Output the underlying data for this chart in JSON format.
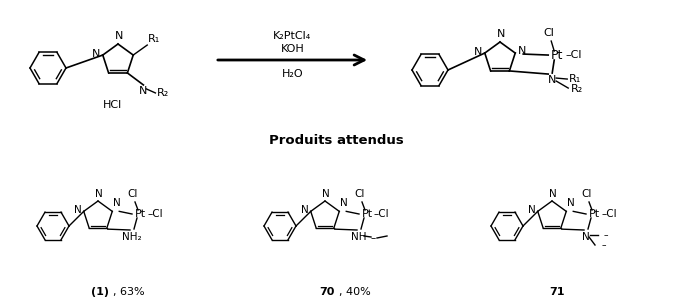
{
  "bg_color": "#ffffff",
  "reaction_conditions": [
    "K₂PtCl₄",
    "KOH",
    "H₂O"
  ],
  "section_title": "Produits attendus",
  "compound_labels": [
    "(1)",
    ", 63%",
    "70",
    ", 40%",
    "71"
  ],
  "fs": 8.0,
  "fs_sm": 7.5
}
